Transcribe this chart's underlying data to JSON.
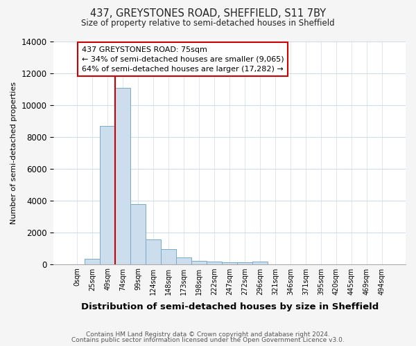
{
  "title1": "437, GREYSTONES ROAD, SHEFFIELD, S11 7BY",
  "title2": "Size of property relative to semi-detached houses in Sheffield",
  "xlabel": "Distribution of semi-detached houses by size in Sheffield",
  "ylabel": "Number of semi-detached properties",
  "bar_labels": [
    "0sqm",
    "25sqm",
    "49sqm",
    "74sqm",
    "99sqm",
    "124sqm",
    "148sqm",
    "173sqm",
    "198sqm",
    "222sqm",
    "247sqm",
    "272sqm",
    "296sqm",
    "321sqm",
    "346sqm",
    "371sqm",
    "395sqm",
    "420sqm",
    "445sqm",
    "469sqm",
    "494sqm"
  ],
  "bar_heights": [
    0,
    310,
    8700,
    11100,
    3750,
    1530,
    920,
    410,
    200,
    150,
    100,
    100,
    150,
    0,
    0,
    0,
    0,
    0,
    0,
    0,
    0
  ],
  "bar_color": "#ccdded",
  "bar_edge_color": "#7aaac8",
  "ylim": [
    0,
    14000
  ],
  "yticks": [
    0,
    2000,
    4000,
    6000,
    8000,
    10000,
    12000,
    14000
  ],
  "property_line_bar_index": 3,
  "property_line_color": "#cc0000",
  "annotation_line1": "437 GREYSTONES ROAD: 75sqm",
  "annotation_line2": "← 34% of semi-detached houses are smaller (9,065)",
  "annotation_line3": "64% of semi-detached houses are larger (17,282) →",
  "annotation_box_color": "#ffffff",
  "annotation_box_edge": "#cc0000",
  "footer1": "Contains HM Land Registry data © Crown copyright and database right 2024.",
  "footer2": "Contains public sector information licensed under the Open Government Licence v3.0.",
  "bg_color": "#f5f5f5",
  "plot_bg_color": "#ffffff",
  "grid_color": "#d0dde8"
}
